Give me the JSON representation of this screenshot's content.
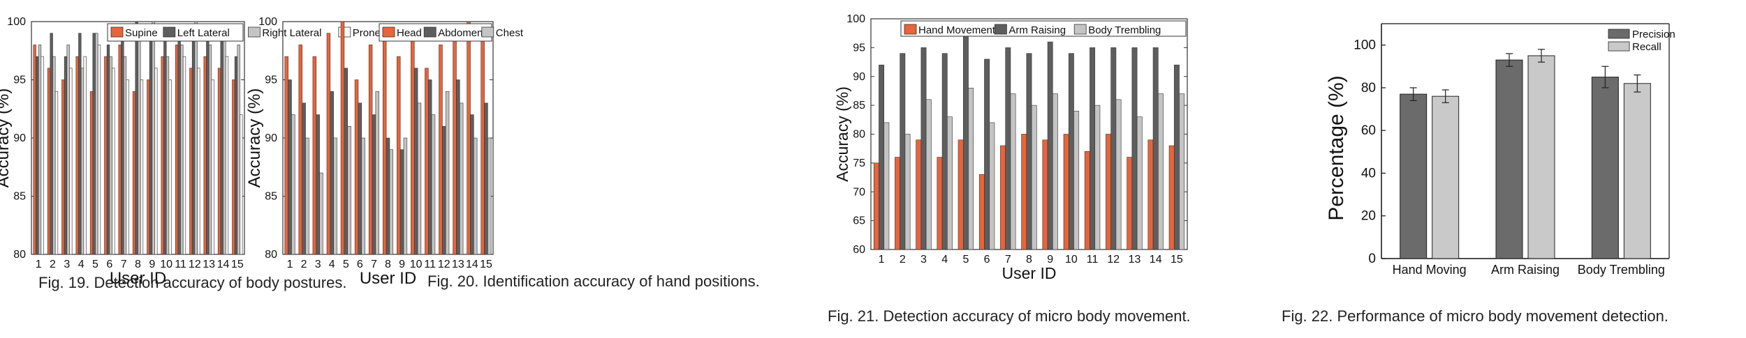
{
  "captions": {
    "fig19": "Fig. 19.  Detection accuracy of body postures.",
    "fig20": "Fig. 20.  Identification accuracy of hand positions.",
    "fig21": "Fig. 21.  Detection accuracy of micro body movement.",
    "fig22": "Fig. 22.  Performance of micro body movement detection."
  },
  "colors": {
    "orange": "#e8643a",
    "dark_gray": "#5e5e5e",
    "light_gray": "#c4c4c4",
    "white": "#f8f8f8",
    "precision": "#6b6b6b",
    "recall": "#c9c9c9"
  },
  "chart_data": [
    {
      "id": "fig19",
      "type": "bar",
      "xlabel": "User ID",
      "ylabel": "Accuracy (%)",
      "ylim": [
        80,
        100
      ],
      "yticks": [
        80,
        85,
        90,
        95,
        100
      ],
      "grid": false,
      "legend_position": "top-right",
      "categories": [
        "1",
        "2",
        "3",
        "4",
        "5",
        "6",
        "7",
        "8",
        "9",
        "10",
        "11",
        "12",
        "13",
        "14",
        "15"
      ],
      "series": [
        {
          "name": "Supine",
          "color_key": "orange",
          "values": [
            98,
            96,
            95,
            97,
            94,
            97,
            98,
            94,
            95,
            97,
            98,
            96,
            97,
            96,
            95
          ]
        },
        {
          "name": "Left Lateral",
          "color_key": "dark_gray",
          "values": [
            97,
            99,
            97,
            99,
            99,
            98,
            99,
            100,
            99,
            99,
            99,
            99,
            99,
            99,
            97
          ]
        },
        {
          "name": "Right Lateral",
          "color_key": "light_gray",
          "values": [
            98,
            97,
            98,
            96,
            99,
            97,
            97,
            99,
            100,
            97,
            98,
            100,
            98,
            99,
            98
          ]
        },
        {
          "name": "Prone",
          "color_key": "white",
          "values": [
            97,
            94,
            96,
            97,
            98,
            96,
            95,
            95,
            96,
            95,
            97,
            96,
            95,
            97,
            92
          ]
        }
      ]
    },
    {
      "id": "fig20",
      "type": "bar",
      "xlabel": "User ID",
      "ylabel": "Accuracy (%)",
      "ylim": [
        80,
        100
      ],
      "yticks": [
        80,
        85,
        90,
        95,
        100
      ],
      "grid": false,
      "legend_position": "top-right",
      "categories": [
        "1",
        "2",
        "3",
        "4",
        "5",
        "6",
        "7",
        "8",
        "9",
        "10",
        "11",
        "12",
        "13",
        "14",
        "15"
      ],
      "series": [
        {
          "name": "Head",
          "color_key": "orange",
          "values": [
            97,
            98,
            97,
            99,
            100,
            95,
            98,
            99,
            97,
            99,
            96,
            98,
            99,
            100,
            99
          ]
        },
        {
          "name": "Abdomen",
          "color_key": "dark_gray",
          "values": [
            95,
            93,
            92,
            94,
            96,
            93,
            92,
            90,
            89,
            96,
            95,
            91,
            95,
            92,
            93
          ]
        },
        {
          "name": "Chest",
          "color_key": "light_gray",
          "values": [
            92,
            90,
            87,
            90,
            91,
            90,
            94,
            89,
            90,
            93,
            92,
            94,
            93,
            90,
            90
          ]
        }
      ]
    },
    {
      "id": "fig21",
      "type": "bar",
      "xlabel": "User ID",
      "ylabel": "Accuracy (%)",
      "ylim": [
        60,
        100
      ],
      "yticks": [
        60,
        65,
        70,
        75,
        80,
        85,
        90,
        95,
        100
      ],
      "grid": false,
      "legend_position": "top-right",
      "categories": [
        "1",
        "2",
        "3",
        "4",
        "5",
        "6",
        "7",
        "8",
        "9",
        "10",
        "11",
        "12",
        "13",
        "14",
        "15"
      ],
      "series": [
        {
          "name": "Hand Movement",
          "color_key": "orange",
          "values": [
            75,
            76,
            79,
            76,
            79,
            73,
            78,
            80,
            79,
            80,
            77,
            80,
            76,
            79,
            78
          ]
        },
        {
          "name": "Arm Raising",
          "color_key": "dark_gray",
          "values": [
            92,
            94,
            95,
            94,
            97,
            93,
            95,
            94,
            96,
            94,
            95,
            95,
            95,
            95,
            92
          ]
        },
        {
          "name": "Body Trembling",
          "color_key": "light_gray",
          "values": [
            82,
            80,
            86,
            83,
            88,
            82,
            87,
            85,
            87,
            84,
            85,
            86,
            83,
            87,
            87
          ]
        }
      ]
    },
    {
      "id": "fig22",
      "type": "bar",
      "xlabel": "",
      "ylabel": "Percentage (%)",
      "ylim": [
        0,
        110
      ],
      "yticks": [
        0,
        20,
        40,
        60,
        80,
        100
      ],
      "grid": false,
      "legend_position": "top-right",
      "categories": [
        "Hand Moving",
        "Arm Raising",
        "Body Trembling"
      ],
      "series": [
        {
          "name": "Precision",
          "color_key": "precision",
          "values": [
            77,
            93,
            85
          ],
          "errors": [
            3,
            3,
            5
          ]
        },
        {
          "name": "Recall",
          "color_key": "recall",
          "values": [
            76,
            95,
            82
          ],
          "errors": [
            3,
            3,
            4
          ]
        }
      ]
    }
  ]
}
